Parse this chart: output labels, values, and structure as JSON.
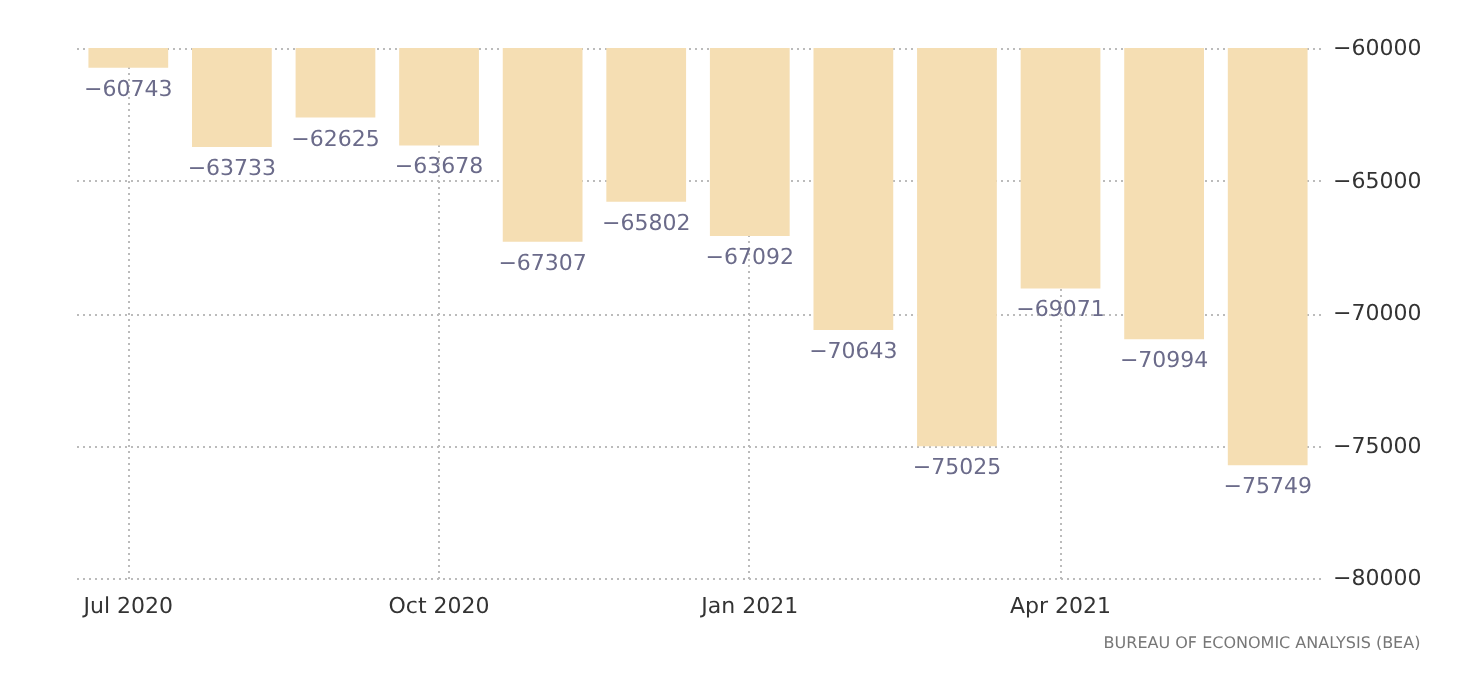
{
  "chart_data": {
    "type": "bar",
    "categories": [
      "Jul 2020",
      null,
      null,
      "Oct 2020",
      null,
      null,
      "Jan 2021",
      null,
      null,
      "Apr 2021",
      null,
      null
    ],
    "values": [
      -60743,
      -63733,
      -62625,
      -63678,
      -67307,
      -65802,
      -67092,
      -70643,
      -75025,
      -69071,
      -70994,
      -75749
    ],
    "color": "#f5deb3",
    "ylim": [
      -80000,
      -60000
    ],
    "yticks": [
      -80000,
      -75000,
      -70000,
      -65000,
      -60000
    ],
    "grid": true,
    "data_labels": true,
    "annotations": [
      "BUREAU OF ECONOMIC ANALYSIS (BEA)"
    ]
  }
}
